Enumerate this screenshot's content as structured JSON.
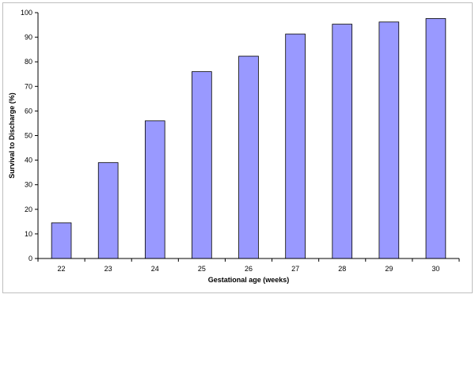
{
  "chart_data": {
    "type": "bar",
    "categories": [
      "22",
      "23",
      "24",
      "25",
      "26",
      "27",
      "28",
      "29",
      "30"
    ],
    "values": [
      14.5,
      39,
      56,
      76,
      82.3,
      91.3,
      95.3,
      96.2,
      97.6
    ],
    "xlabel": "Gestational age (weeks)",
    "ylabel": "Survival to Discharge (%)",
    "ylim": [
      0,
      100
    ],
    "yticks": [
      0,
      10,
      20,
      30,
      40,
      50,
      60,
      70,
      80,
      90,
      100
    ],
    "grid": false,
    "legend": "none",
    "colors": {
      "bar_fill": "#9999ff",
      "bar_stroke": "#000000",
      "frame_border": "#bfbfbf"
    }
  }
}
